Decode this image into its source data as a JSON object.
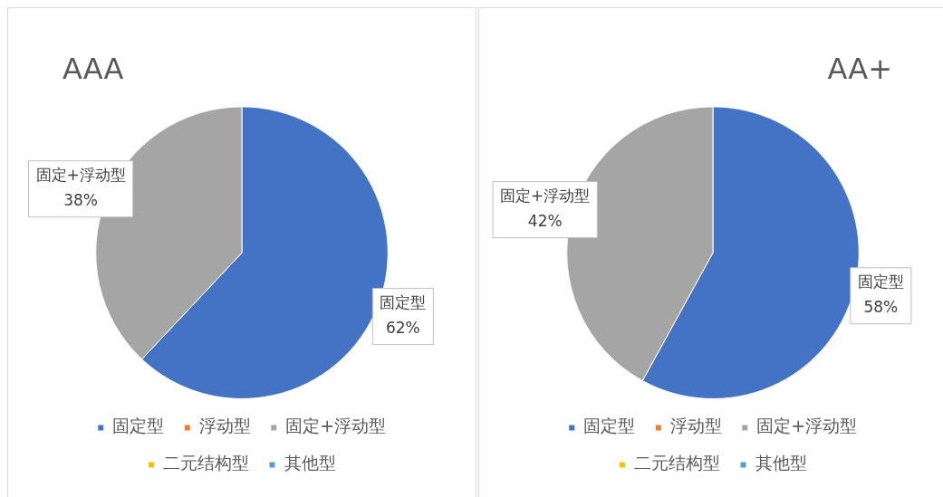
{
  "chart_data": [
    {
      "type": "pie",
      "title": "AAA",
      "categories": [
        "固定型",
        "浮动型",
        "固定+浮动型",
        "二元结构型",
        "其他型"
      ],
      "values": [
        62,
        0,
        38,
        0,
        0
      ],
      "colors": [
        "#4472c4",
        "#ed7d31",
        "#a5a5a5",
        "#ffc000",
        "#5b9bd5"
      ],
      "value_labels": [
        "62%",
        null,
        "38%",
        null,
        null
      ],
      "legend": "bottom"
    },
    {
      "type": "pie",
      "title": "AA+",
      "categories": [
        "固定型",
        "浮动型",
        "固定+浮动型",
        "二元结构型",
        "其他型"
      ],
      "values": [
        58,
        0,
        42,
        0,
        0
      ],
      "colors": [
        "#4472c4",
        "#ed7d31",
        "#a5a5a5",
        "#ffc000",
        "#5b9bd5"
      ],
      "value_labels": [
        "58%",
        null,
        "42%",
        null,
        null
      ],
      "legend": "bottom"
    }
  ]
}
